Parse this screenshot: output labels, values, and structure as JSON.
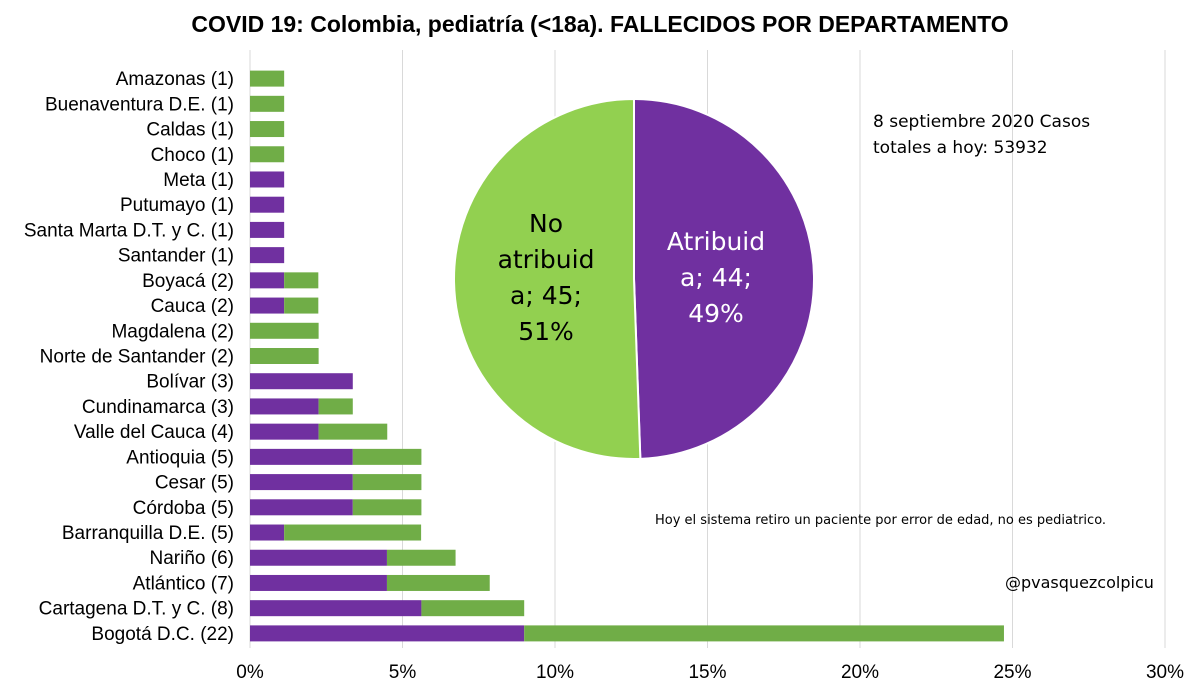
{
  "chart_data": [
    {
      "type": "bar",
      "orientation": "horizontal",
      "stacked": true,
      "title": "COVID 19: Colombia, pediatría (<18a). FALLECIDOS POR DEPARTAMENTO",
      "categories": [
        "Amazonas (1)",
        "Buenaventura D.E. (1)",
        "Caldas (1)",
        "Choco (1)",
        "Meta (1)",
        "Putumayo (1)",
        "Santa Marta D.T. y C. (1)",
        "Santander (1)",
        "Boyacá (2)",
        "Cauca (2)",
        "Magdalena (2)",
        "Norte de Santander (2)",
        "Bolívar (3)",
        "Cundinamarca (3)",
        "Valle del Cauca (4)",
        "Antioquia (5)",
        "Cesar (5)",
        "Córdoba (5)",
        "Barranquilla D.E. (5)",
        "Nariño (6)",
        "Atlántico (7)",
        "Cartagena D.T. y C. (8)",
        "Bogotá D.C. (22)"
      ],
      "series": [
        {
          "color": "#7030a0",
          "values": [
            0,
            0,
            0,
            0,
            1.12,
            1.12,
            1.12,
            1.12,
            1.12,
            1.12,
            0,
            0,
            3.37,
            2.25,
            2.25,
            3.37,
            3.37,
            3.37,
            1.12,
            4.49,
            4.49,
            5.62,
            8.99
          ]
        },
        {
          "color": "#70ad47",
          "values": [
            1.12,
            1.12,
            1.12,
            1.12,
            0,
            0,
            0,
            0,
            1.12,
            1.12,
            2.25,
            2.25,
            0,
            1.12,
            2.25,
            2.25,
            2.25,
            2.25,
            4.49,
            2.25,
            3.37,
            3.37,
            15.73
          ]
        }
      ],
      "x_ticks": [
        "0%",
        "5%",
        "10%",
        "15%",
        "20%",
        "25%",
        "30%"
      ],
      "xlim": [
        0,
        30
      ],
      "grid": "vertical"
    },
    {
      "type": "pie",
      "slices": [
        {
          "label": [
            "Atribuid",
            "a; 44;",
            "49%"
          ],
          "value": 44,
          "color": "#7030a0",
          "text_color": "#ffffff"
        },
        {
          "label": [
            "No",
            "atribuid",
            "a; 45;",
            "51%"
          ],
          "value": 45,
          "color": "#92d050",
          "text_color": "#000000"
        }
      ]
    }
  ],
  "annotations": {
    "date_line1": "8 septiembre 2020 Casos",
    "date_line2": "totales a hoy: 53932",
    "note": "Hoy el sistema retiro un paciente por error de edad, no es pediatrico.",
    "handle": "@pvasquezcolpicu"
  }
}
